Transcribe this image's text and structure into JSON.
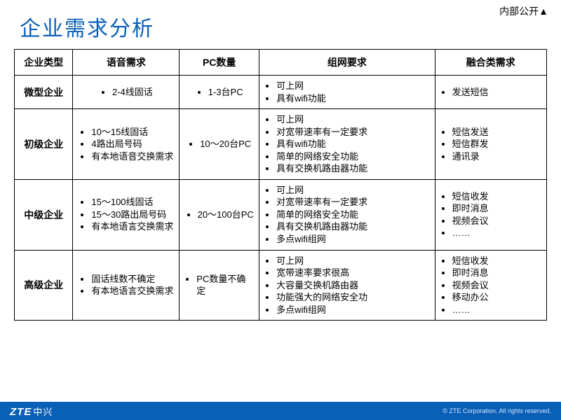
{
  "classification_label": "内部公开▲",
  "slide_title": "企业需求分析",
  "brand_en": "ZTE",
  "brand_cn": "中兴",
  "copyright": "© ZTE Corporation. All rights reserved.",
  "colors": {
    "title": "#0a5fb6",
    "footer_bg": "#0a5fb6",
    "border": "#000000",
    "text": "#000000",
    "footer_text": "#ffffff",
    "copyright_text": "#cfe6ff"
  },
  "table": {
    "columns": [
      "企业类型",
      "语音需求",
      "PC数量",
      "组网要求",
      "融合类需求"
    ],
    "col_widths_pct": [
      11,
      20,
      15,
      33,
      21
    ],
    "rows": [
      {
        "type": "微型企业",
        "voice": [
          "2-4线固话"
        ],
        "pc": [
          "1-3台PC"
        ],
        "network": [
          "可上网",
          "具有wifi功能"
        ],
        "converged": [
          "发送短信"
        ]
      },
      {
        "type": "初级企业",
        "voice": [
          "10～15线固话",
          "4路出局号码",
          "有本地语音交换需求"
        ],
        "pc": [
          "10～20台PC"
        ],
        "network": [
          "可上网",
          "对宽带速率有一定要求",
          "具有wifi功能",
          "简单的网络安全功能",
          "具有交换机路由器功能"
        ],
        "converged": [
          "短信发送",
          "短信群发",
          "通讯录"
        ]
      },
      {
        "type": "中级企业",
        "voice": [
          "15～100线固话",
          "15～30路出局号码",
          "有本地语言交换需求"
        ],
        "pc": [
          "20～100台PC"
        ],
        "network": [
          "可上网",
          "对宽带速率有一定要求",
          "简单的网络安全功能",
          "具有交换机路由器功能",
          "多点wifi组网"
        ],
        "converged": [
          "短信收发",
          "即时消息",
          "视频会议",
          "……"
        ]
      },
      {
        "type": "高级企业",
        "voice": [
          "固话线数不确定",
          "有本地语言交换需求"
        ],
        "pc": [
          "PC数量不确定"
        ],
        "network": [
          "可上网",
          "宽带速率要求很高",
          "大容量交换机路由器",
          "功能强大的网络安全功",
          "多点wifi组网"
        ],
        "converged": [
          "短信收发",
          "即时消息",
          "视频会议",
          "移动办公",
          "……"
        ]
      }
    ]
  }
}
